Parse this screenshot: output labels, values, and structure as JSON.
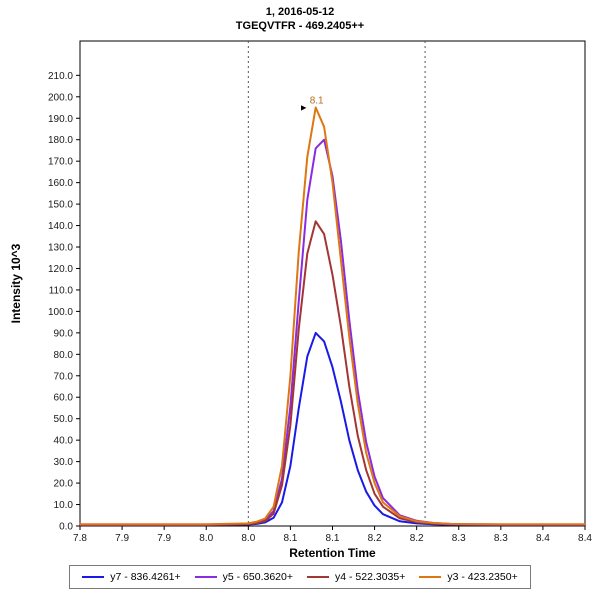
{
  "header": {
    "title": "1, 2016-05-12",
    "subtitle": "TGEQVTFR - 469.2405++"
  },
  "chart_data": {
    "type": "line",
    "title": "1, 2016-05-12",
    "subtitle": "TGEQVTFR - 469.2405++",
    "xlabel": "Retention Time",
    "ylabel": "Intensity 10^3",
    "xlim": [
      7.8,
      8.4
    ],
    "ylim": [
      0,
      226
    ],
    "grid": false,
    "legend_position": "bottom",
    "x_ticks": {
      "values": [
        7.8,
        7.85,
        7.9,
        7.95,
        8.0,
        8.05,
        8.1,
        8.15,
        8.2,
        8.25,
        8.3,
        8.35,
        8.4
      ],
      "labels": [
        "7.8",
        "7.9",
        "7.9",
        "8.0",
        "8.0",
        "8.1",
        "8.1",
        "8.2",
        "8.2",
        "8.3",
        "8.3",
        "8.4",
        "8.4"
      ]
    },
    "y_ticks": {
      "values": [
        0,
        10,
        20,
        30,
        40,
        50,
        60,
        70,
        80,
        90,
        100,
        110,
        120,
        130,
        140,
        150,
        160,
        170,
        180,
        190,
        200,
        210
      ],
      "labels": [
        "0.0",
        "10.0",
        "20.0",
        "30.0",
        "40.0",
        "50.0",
        "60.0",
        "70.0",
        "80.0",
        "90.0",
        "100.0",
        "110.0",
        "120.0",
        "130.0",
        "140.0",
        "150.0",
        "160.0",
        "170.0",
        "180.0",
        "190.0",
        "200.0",
        "210.0"
      ]
    },
    "integration_boundaries": [
      8.0,
      8.21
    ],
    "annotation": {
      "text": "8.1",
      "x": 8.08,
      "y": 195,
      "color": "#B5691C"
    },
    "x": [
      7.8,
      7.85,
      7.9,
      7.95,
      8.0,
      8.01,
      8.02,
      8.03,
      8.04,
      8.05,
      8.06,
      8.07,
      8.08,
      8.09,
      8.1,
      8.11,
      8.12,
      8.13,
      8.14,
      8.15,
      8.16,
      8.18,
      8.2,
      8.22,
      8.24,
      8.26,
      8.3,
      8.35,
      8.4
    ],
    "series": [
      {
        "name": "y7 - 836.4261+",
        "color": "#1A1AE8",
        "values": [
          0.4,
          0.4,
          0.4,
          0.4,
          0.7,
          1.0,
          1.7,
          3.8,
          11,
          28,
          55,
          79,
          90,
          86,
          74,
          58,
          40,
          26,
          16,
          9.5,
          5.5,
          2.2,
          1.2,
          0.8,
          0.6,
          0.5,
          0.4,
          0.4,
          0.4
        ]
      },
      {
        "name": "y5 - 650.3620+",
        "color": "#8A2BE2",
        "values": [
          0.6,
          0.6,
          0.6,
          0.6,
          1.0,
          1.6,
          2.8,
          7,
          22,
          56,
          105,
          152,
          176,
          180,
          163,
          133,
          96,
          63,
          39,
          23,
          13,
          5,
          2.4,
          1.4,
          1.0,
          0.8,
          0.7,
          0.7,
          0.7
        ]
      },
      {
        "name": "y4 - 522.3035+",
        "color": "#A33535",
        "values": [
          0.5,
          0.5,
          0.5,
          0.5,
          0.9,
          1.4,
          2.3,
          5.8,
          19,
          47,
          92,
          127,
          142,
          136,
          117,
          93,
          65,
          42,
          26,
          15,
          9,
          3.6,
          1.8,
          1.1,
          0.8,
          0.7,
          0.6,
          0.6,
          0.6
        ]
      },
      {
        "name": "y3 - 423.2350+",
        "color": "#DD7711",
        "values": [
          0.8,
          0.8,
          0.8,
          0.8,
          1.2,
          2,
          3.5,
          9,
          28,
          70,
          128,
          172,
          195,
          186,
          160,
          124,
          88,
          57,
          34,
          20,
          11,
          4.5,
          2.2,
          1.4,
          1.0,
          0.9,
          0.8,
          0.8,
          0.8
        ]
      }
    ]
  }
}
